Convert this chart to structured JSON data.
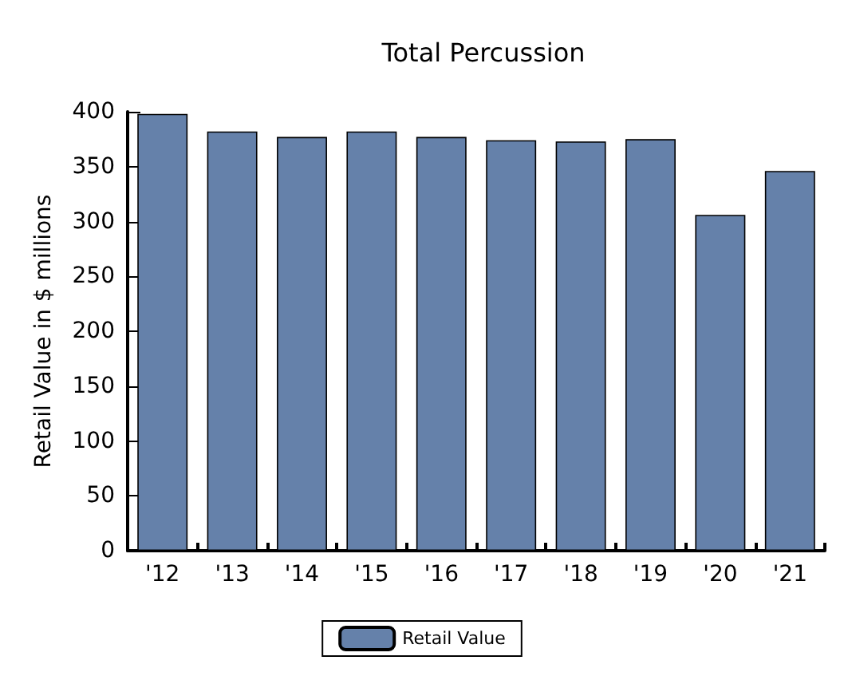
{
  "chart_data": {
    "type": "bar",
    "title": "Total Percussion",
    "ylabel": "Retail Value in $ millions",
    "categories": [
      "'12",
      "'13",
      "'14",
      "'15",
      "'16",
      "'17",
      "'18",
      "'19",
      "'20",
      "'21"
    ],
    "series": [
      {
        "name": "Retail Value",
        "color": "#6581aa",
        "values": [
          398,
          382,
          377,
          382,
          377,
          374,
          373,
          375,
          306,
          346
        ]
      }
    ],
    "ylim": [
      0,
      400
    ],
    "yticks": [
      0,
      50,
      100,
      150,
      200,
      250,
      300,
      350,
      400
    ],
    "grid": false,
    "legend": "bottom"
  }
}
